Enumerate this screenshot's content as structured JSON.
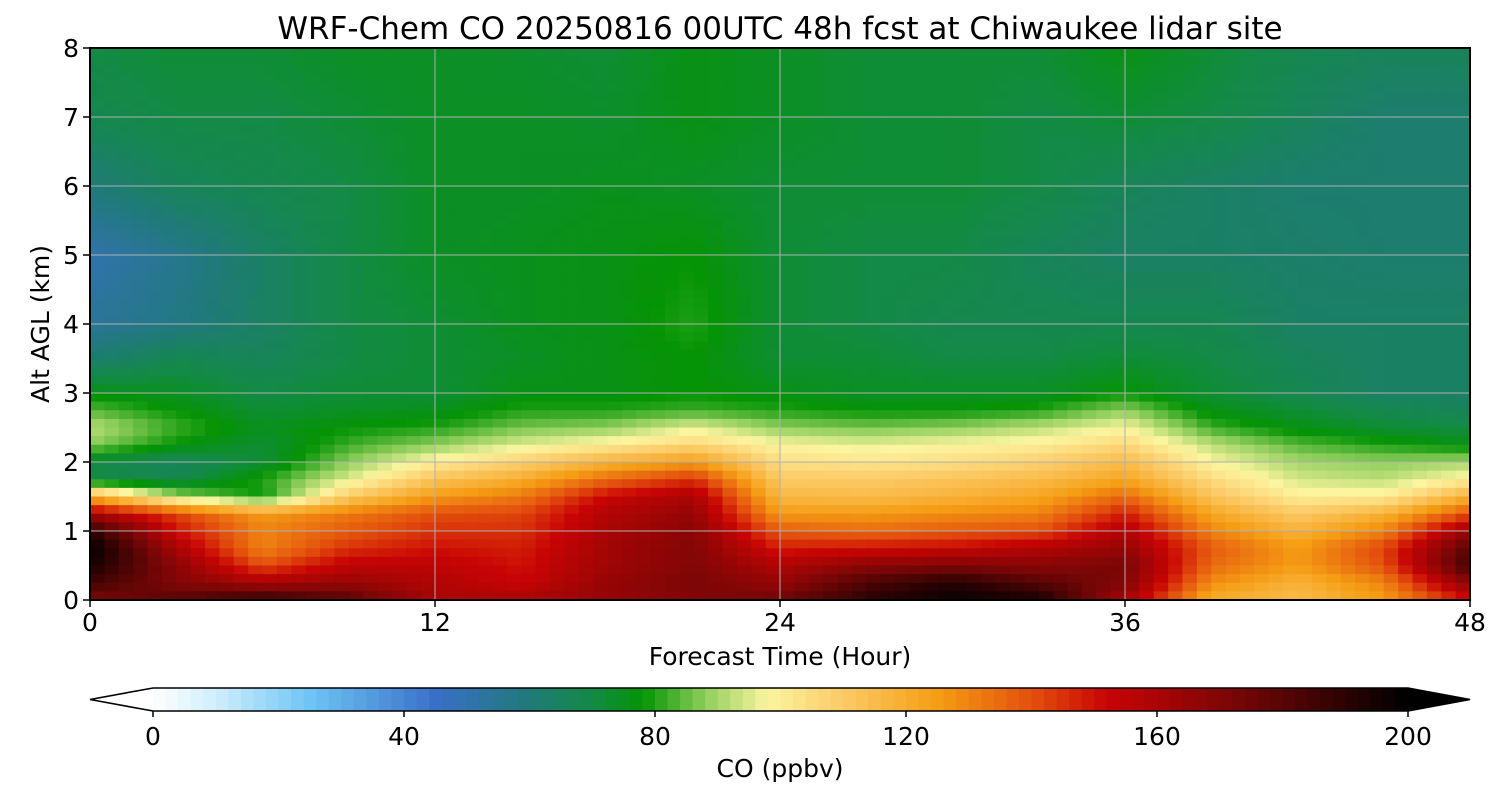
{
  "chart_data": {
    "type": "heatmap",
    "title": "WRF-Chem CO  20250816 00UTC 48h fcst at Chiwaukee lidar site",
    "xlabel": "Forecast Time (Hour)",
    "ylabel": "Alt AGL (km)",
    "xlim": [
      0,
      48
    ],
    "ylim": [
      0,
      8
    ],
    "xticks": [
      0,
      12,
      24,
      36,
      48
    ],
    "yticks": [
      0,
      1,
      2,
      3,
      4,
      5,
      6,
      7,
      8
    ],
    "grid": true,
    "colorbar": {
      "label": "CO  (ppbv)",
      "orientation": "horizontal",
      "vmin": 0,
      "vmax": 200,
      "ticks": [
        0,
        40,
        80,
        120,
        160,
        200
      ],
      "extend": "both",
      "stops": [
        {
          "v": 0,
          "c": "#ffffff"
        },
        {
          "v": 10,
          "c": "#cfeefc"
        },
        {
          "v": 25,
          "c": "#6ec5f5"
        },
        {
          "v": 45,
          "c": "#3a6fc8"
        },
        {
          "v": 60,
          "c": "#1f7a78"
        },
        {
          "v": 70,
          "c": "#138a45"
        },
        {
          "v": 78,
          "c": "#049404"
        },
        {
          "v": 88,
          "c": "#8fce5c"
        },
        {
          "v": 98,
          "c": "#fcf5a0"
        },
        {
          "v": 108,
          "c": "#fcd070"
        },
        {
          "v": 125,
          "c": "#f59d14"
        },
        {
          "v": 140,
          "c": "#e3500d"
        },
        {
          "v": 152,
          "c": "#c80404"
        },
        {
          "v": 172,
          "c": "#7a0606"
        },
        {
          "v": 200,
          "c": "#000000"
        }
      ]
    },
    "time_hours": [
      0,
      3,
      6,
      9,
      12,
      15,
      18,
      21,
      24,
      27,
      30,
      33,
      36,
      39,
      42,
      45,
      48
    ],
    "altitude_km": [
      0,
      0.25,
      0.5,
      0.75,
      1.0,
      1.25,
      1.5,
      1.75,
      2.0,
      2.25,
      2.5,
      2.75,
      3.0,
      3.5,
      4.0,
      5.0,
      6.0,
      7.0,
      8.0
    ],
    "co_ppbv": [
      [
        170,
        180,
        190,
        180,
        160,
        160,
        165,
        170,
        175,
        190,
        198,
        195,
        160,
        120,
        115,
        125,
        150
      ],
      [
        185,
        170,
        160,
        165,
        158,
        152,
        165,
        172,
        165,
        182,
        192,
        180,
        170,
        128,
        118,
        130,
        168
      ],
      [
        195,
        168,
        140,
        155,
        155,
        150,
        162,
        170,
        158,
        168,
        170,
        168,
        172,
        135,
        125,
        140,
        185
      ],
      [
        200,
        160,
        130,
        145,
        150,
        148,
        162,
        170,
        148,
        150,
        152,
        158,
        165,
        138,
        125,
        142,
        180
      ],
      [
        190,
        150,
        130,
        138,
        145,
        145,
        160,
        168,
        138,
        135,
        138,
        140,
        158,
        130,
        118,
        130,
        165
      ],
      [
        160,
        142,
        125,
        132,
        140,
        142,
        158,
        165,
        125,
        125,
        128,
        130,
        148,
        122,
        110,
        118,
        140
      ],
      [
        120,
        90,
        78,
        110,
        125,
        132,
        152,
        160,
        116,
        115,
        118,
        122,
        135,
        112,
        100,
        100,
        118
      ],
      [
        70,
        68,
        80,
        95,
        112,
        120,
        135,
        145,
        110,
        110,
        112,
        115,
        122,
        105,
        94,
        92,
        100
      ],
      [
        70,
        66,
        72,
        88,
        100,
        108,
        118,
        125,
        104,
        102,
        104,
        108,
        115,
        98,
        90,
        88,
        90
      ],
      [
        88,
        78,
        72,
        82,
        88,
        95,
        100,
        106,
        98,
        96,
        98,
        100,
        106,
        92,
        84,
        80,
        76
      ],
      [
        92,
        82,
        75,
        78,
        80,
        86,
        88,
        96,
        88,
        86,
        88,
        92,
        98,
        82,
        76,
        72,
        70
      ],
      [
        84,
        78,
        72,
        74,
        75,
        80,
        80,
        82,
        80,
        78,
        78,
        80,
        88,
        76,
        72,
        68,
        66
      ],
      [
        76,
        74,
        70,
        72,
        72,
        76,
        76,
        78,
        76,
        74,
        74,
        74,
        78,
        72,
        68,
        64,
        64
      ],
      [
        62,
        68,
        66,
        70,
        72,
        74,
        76,
        78,
        72,
        72,
        70,
        70,
        72,
        70,
        66,
        64,
        64
      ],
      [
        54,
        58,
        64,
        70,
        72,
        75,
        76,
        80,
        72,
        70,
        68,
        68,
        68,
        68,
        64,
        64,
        64
      ],
      [
        50,
        56,
        64,
        70,
        74,
        75,
        76,
        78,
        72,
        70,
        70,
        66,
        64,
        64,
        63,
        62,
        62
      ],
      [
        60,
        66,
        68,
        70,
        74,
        74,
        75,
        74,
        72,
        72,
        72,
        70,
        66,
        64,
        62,
        62,
        62
      ],
      [
        68,
        70,
        70,
        72,
        74,
        74,
        73,
        76,
        74,
        72,
        72,
        70,
        72,
        70,
        66,
        62,
        62
      ],
      [
        70,
        72,
        72,
        74,
        74,
        73,
        72,
        76,
        74,
        72,
        72,
        72,
        76,
        72,
        68,
        66,
        66
      ]
    ]
  }
}
